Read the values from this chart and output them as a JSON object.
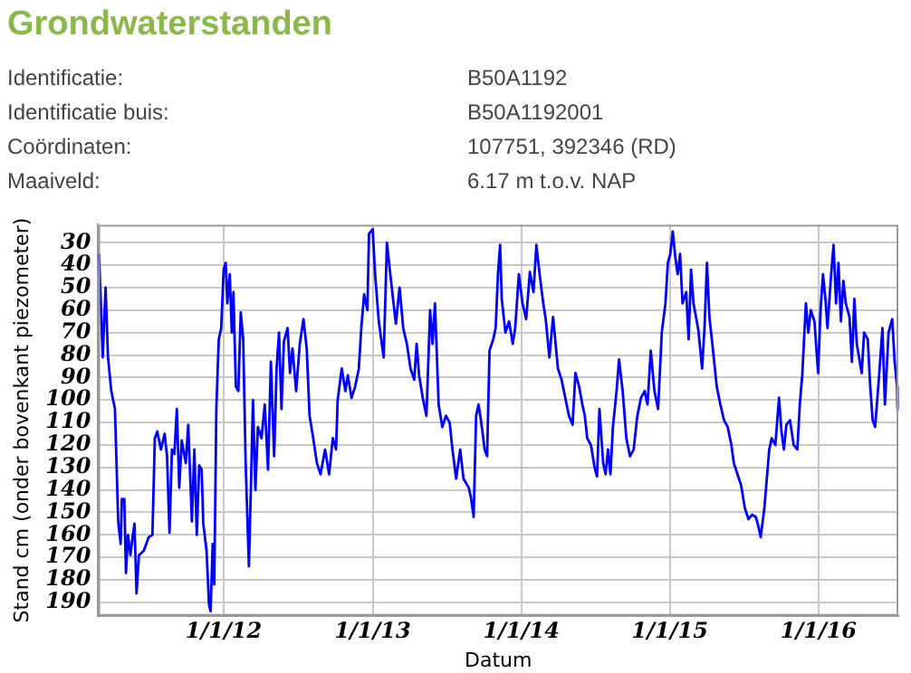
{
  "chart_data": {
    "type": "line",
    "title": "Grondwaterstanden",
    "annotations": [
      "Identificatie:",
      "B50A1192",
      "Identificatie buis:",
      "B50A1192001",
      "Coördinaten:",
      "107751, 392346 (RD)",
      "Maaiveld:",
      "6.17 m t.o.v. NAP"
    ],
    "xlabel": "Datum",
    "ylabel": "Stand cm (onder bovenkant piezometer)",
    "xlim": [
      "2011-02-27",
      "2016-07-15"
    ],
    "ylim": [
      196,
      22
    ],
    "xticks": [
      {
        "value": "2012-01-01",
        "label": "1/1/12"
      },
      {
        "value": "2013-01-01",
        "label": "1/1/13"
      },
      {
        "value": "2014-01-01",
        "label": "1/1/14"
      },
      {
        "value": "2015-01-01",
        "label": "1/1/15"
      },
      {
        "value": "2016-01-01",
        "label": "1/1/16"
      }
    ],
    "yticks": [
      30,
      40,
      50,
      60,
      70,
      80,
      90,
      100,
      110,
      120,
      130,
      140,
      150,
      160,
      170,
      180,
      190
    ],
    "grid": true,
    "legend": false,
    "marker": "none",
    "line_style": "solid",
    "series": [
      {
        "color": "#0000ff",
        "x": [
          "2011-03-01",
          "2011-03-10",
          "2011-03-17",
          "2011-03-23",
          "2011-03-31",
          "2011-04-09",
          "2011-04-17",
          "2011-04-23",
          "2011-04-26",
          "2011-05-02",
          "2011-05-06",
          "2011-05-11",
          "2011-05-17",
          "2011-05-23",
          "2011-05-27",
          "2011-06-01",
          "2011-06-07",
          "2011-06-19",
          "2011-07-01",
          "2011-07-10",
          "2011-07-16",
          "2011-07-22",
          "2011-07-31",
          "2011-08-09",
          "2011-08-15",
          "2011-08-21",
          "2011-08-27",
          "2011-09-02",
          "2011-09-08",
          "2011-09-14",
          "2011-09-20",
          "2011-09-30",
          "2011-10-06",
          "2011-10-15",
          "2011-10-21",
          "2011-10-27",
          "2011-11-02",
          "2011-11-08",
          "2011-11-12",
          "2011-11-20",
          "2011-11-26",
          "2011-11-30",
          "2011-12-05",
          "2011-12-09",
          "2011-12-14",
          "2011-12-20",
          "2011-12-26",
          "2012-01-01",
          "2012-01-06",
          "2012-01-10",
          "2012-01-16",
          "2012-01-21",
          "2012-01-25",
          "2012-01-31",
          "2012-02-06",
          "2012-02-12",
          "2012-02-18",
          "2012-02-24",
          "2012-03-03",
          "2012-03-09",
          "2012-03-13",
          "2012-03-19",
          "2012-03-25",
          "2012-04-03",
          "2012-04-11",
          "2012-04-19",
          "2012-04-26",
          "2012-05-04",
          "2012-05-10",
          "2012-05-16",
          "2012-05-22",
          "2012-05-28",
          "2012-06-06",
          "2012-06-12",
          "2012-06-18",
          "2012-06-27",
          "2012-07-06",
          "2012-07-15",
          "2012-07-23",
          "2012-07-30",
          "2012-08-08",
          "2012-08-17",
          "2012-08-26",
          "2012-09-06",
          "2012-09-16",
          "2012-09-25",
          "2012-10-03",
          "2012-10-07",
          "2012-10-17",
          "2012-10-26",
          "2012-11-01",
          "2012-11-10",
          "2012-11-19",
          "2012-11-28",
          "2012-12-04",
          "2012-12-11",
          "2012-12-19",
          "2012-12-23",
          "2013-01-01",
          "2013-01-07",
          "2013-01-16",
          "2013-01-28",
          "2013-02-05",
          "2013-02-12",
          "2013-02-20",
          "2013-02-27",
          "2013-03-08",
          "2013-03-17",
          "2013-03-26",
          "2013-04-04",
          "2013-04-13",
          "2013-04-19",
          "2013-04-25",
          "2013-05-04",
          "2013-05-13",
          "2013-05-22",
          "2013-05-28",
          "2013-06-03",
          "2013-06-12",
          "2013-06-21",
          "2013-06-30",
          "2013-07-09",
          "2013-07-16",
          "2013-07-25",
          "2013-08-04",
          "2013-08-12",
          "2013-08-25",
          "2013-08-30",
          "2013-09-06",
          "2013-09-12",
          "2013-09-18",
          "2013-09-24",
          "2013-10-03",
          "2013-10-09",
          "2013-10-15",
          "2013-10-24",
          "2013-10-30",
          "2013-11-05",
          "2013-11-10",
          "2013-11-14",
          "2013-11-23",
          "2013-12-02",
          "2013-12-11",
          "2013-12-17",
          "2013-12-26",
          "2014-01-04",
          "2014-01-13",
          "2014-01-22",
          "2014-01-31",
          "2014-02-07",
          "2014-02-15",
          "2014-02-24",
          "2014-03-02",
          "2014-03-11",
          "2014-03-20",
          "2014-04-01",
          "2014-04-10",
          "2014-04-19",
          "2014-04-28",
          "2014-05-07",
          "2014-05-14",
          "2014-05-23",
          "2014-05-31",
          "2014-06-06",
          "2014-06-12",
          "2014-06-21",
          "2014-06-30",
          "2014-07-06",
          "2014-07-12",
          "2014-07-21",
          "2014-07-27",
          "2014-08-02",
          "2014-08-08",
          "2014-08-14",
          "2014-08-23",
          "2014-08-29",
          "2014-09-07",
          "2014-09-16",
          "2014-09-25",
          "2014-10-04",
          "2014-10-13",
          "2014-10-22",
          "2014-10-31",
          "2014-11-07",
          "2014-11-15",
          "2014-11-24",
          "2014-12-03",
          "2014-12-12",
          "2014-12-21",
          "2014-12-27",
          "2015-01-02",
          "2015-01-08",
          "2015-01-14",
          "2015-01-20",
          "2015-01-26",
          "2015-02-01",
          "2015-02-10",
          "2015-02-16",
          "2015-02-22",
          "2015-02-28",
          "2015-03-12",
          "2015-03-21",
          "2015-03-27",
          "2015-04-02",
          "2015-04-08",
          "2015-04-17",
          "2015-04-26",
          "2015-05-05",
          "2015-05-14",
          "2015-05-23",
          "2015-06-01",
          "2015-06-07",
          "2015-06-16",
          "2015-06-25",
          "2015-07-04",
          "2015-07-13",
          "2015-07-22",
          "2015-07-31",
          "2015-08-06",
          "2015-08-12",
          "2015-08-21",
          "2015-08-27",
          "2015-09-02",
          "2015-09-08",
          "2015-09-17",
          "2015-09-26",
          "2015-10-02",
          "2015-10-08",
          "2015-10-14",
          "2015-10-23",
          "2015-11-01",
          "2015-11-10",
          "2015-11-16",
          "2015-11-22",
          "2015-12-01",
          "2015-12-07",
          "2015-12-13",
          "2015-12-22",
          "2015-12-31",
          "2016-01-06",
          "2016-01-12",
          "2016-01-18",
          "2016-01-23",
          "2016-02-01",
          "2016-02-07",
          "2016-02-13",
          "2016-02-19",
          "2016-02-25",
          "2016-03-02",
          "2016-03-08",
          "2016-03-17",
          "2016-03-23",
          "2016-03-29",
          "2016-04-04",
          "2016-04-16",
          "2016-04-22",
          "2016-05-01",
          "2016-05-07",
          "2016-05-13",
          "2016-05-19",
          "2016-05-28",
          "2016-06-06",
          "2016-06-12",
          "2016-06-21",
          "2016-06-30",
          "2016-07-06",
          "2016-07-12",
          "2016-07-13"
        ],
        "values": [
          35,
          81,
          50,
          81,
          96,
          104,
          154,
          164,
          144,
          144,
          177,
          160,
          169,
          160,
          155,
          186,
          169,
          167,
          161,
          160,
          117,
          114,
          122,
          115,
          125,
          159,
          122,
          124,
          104,
          139,
          118,
          128,
          111,
          154,
          122,
          160,
          129,
          131,
          155,
          167,
          191,
          194,
          164,
          182,
          104,
          73,
          68,
          42,
          39,
          57,
          44,
          70,
          52,
          94,
          96,
          61,
          73,
          128,
          174,
          131,
          100,
          140,
          112,
          117,
          102,
          131,
          83,
          125,
          86,
          70,
          104,
          74,
          68,
          88,
          77,
          96,
          75,
          64,
          77,
          107,
          117,
          128,
          133,
          122,
          133,
          117,
          122,
          100,
          86,
          96,
          89,
          99,
          94,
          86,
          68,
          53,
          60,
          26,
          24,
          44,
          65,
          81,
          30,
          42,
          55,
          66,
          50,
          68,
          75,
          86,
          91,
          75,
          89,
          99,
          107,
          60,
          75,
          57,
          102,
          112,
          107,
          110,
          122,
          135,
          122,
          135,
          139,
          143,
          152,
          107,
          102,
          109,
          122,
          125,
          78,
          73,
          68,
          43,
          31,
          55,
          70,
          65,
          75,
          68,
          44,
          57,
          64,
          43,
          52,
          31,
          44,
          57,
          64,
          81,
          63,
          86,
          91,
          99,
          107,
          111,
          88,
          94,
          102,
          107,
          117,
          120,
          130,
          134,
          104,
          128,
          133,
          122,
          133,
          112,
          96,
          82,
          96,
          117,
          125,
          122,
          107,
          99,
          96,
          102,
          78,
          96,
          104,
          70,
          57,
          39,
          35,
          25,
          36,
          44,
          35,
          57,
          52,
          73,
          42,
          57,
          69,
          86,
          68,
          39,
          63,
          78,
          94,
          102,
          109,
          112,
          120,
          128,
          133,
          138,
          148,
          153,
          151,
          152,
          156,
          161,
          148,
          135,
          122,
          117,
          120,
          99,
          114,
          122,
          111,
          109,
          120,
          122,
          102,
          89,
          57,
          70,
          60,
          65,
          88,
          60,
          44,
          55,
          68,
          44,
          31,
          57,
          39,
          65,
          47,
          57,
          63,
          83,
          55,
          75,
          88,
          70,
          73,
          94,
          109,
          112,
          91,
          68,
          102,
          70,
          64,
          83,
          94,
          104
        ]
      }
    ]
  }
}
